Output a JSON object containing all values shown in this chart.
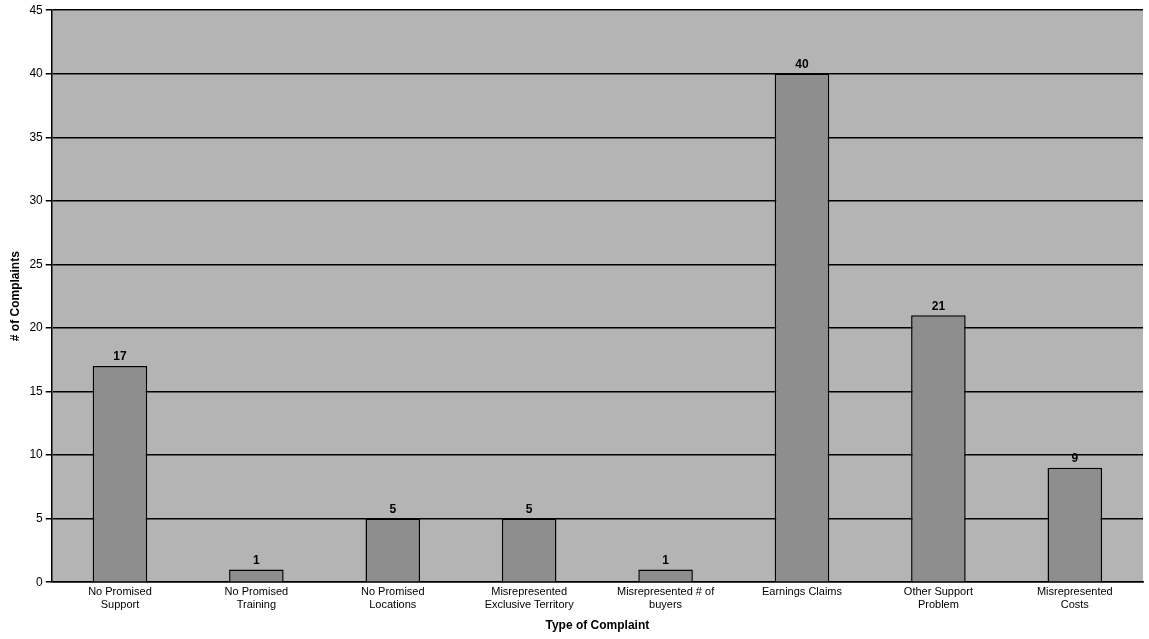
{
  "chart_data": {
    "type": "bar",
    "xlabel": "Type of Complaint",
    "ylabel": "# of Complaints",
    "categories": [
      "No Promised Support",
      "No Promised Training",
      "No Promised Locations",
      "Misrepresented Exclusive Territory",
      "Misrepresented # of buyers",
      "Earnings Claims",
      "Other Support Problem",
      "Misrepresented Costs"
    ],
    "values": [
      17,
      1,
      5,
      5,
      1,
      40,
      21,
      9
    ],
    "color": "#8e8e8e",
    "ylim": [
      0,
      45
    ],
    "yticks": [
      0,
      5,
      10,
      15,
      20,
      25,
      30,
      35,
      40,
      45
    ],
    "grid": "y",
    "data_labels": true,
    "legend": false
  }
}
